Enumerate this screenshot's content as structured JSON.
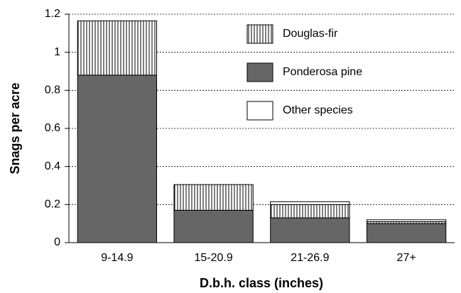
{
  "chart_data": {
    "type": "stacked-bar",
    "y_label": "Snags per acre",
    "x_label": "D.b.h. class (inches)",
    "categories": [
      "9-14.9",
      "15-20.9",
      "21-26.9",
      "27+"
    ],
    "series": [
      {
        "name": "Ponderosa pine",
        "color": "#666666",
        "values": [
          0.88,
          0.17,
          0.13,
          0.1
        ]
      },
      {
        "name": "Douglas-fir",
        "color": "#000000",
        "pattern": "vertical-lines",
        "values": [
          0.285,
          0.135,
          0.07,
          0.01
        ]
      },
      {
        "name": "Other species",
        "color": "#ffffff",
        "values": [
          0,
          0,
          0.015,
          0.01
        ]
      }
    ],
    "legend_order": [
      1,
      0,
      2
    ],
    "ylim": [
      0,
      1.2
    ],
    "yticks": [
      0,
      0.2,
      0.4,
      0.6,
      0.8,
      1,
      1.2
    ],
    "grid": true,
    "legend": "upper right"
  }
}
